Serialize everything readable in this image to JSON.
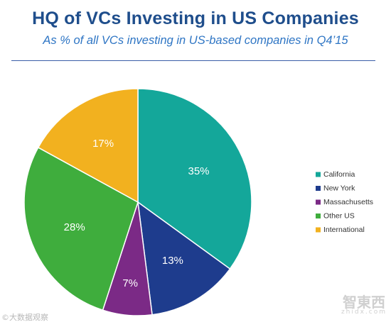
{
  "chart_data": {
    "type": "pie",
    "title": "HQ of VCs Investing in US Companies",
    "subtitle": "As % of all VCs investing in US-based companies in Q4’15",
    "slices": [
      {
        "label": "California",
        "value": 35,
        "display": "35%",
        "color": "#14a79a"
      },
      {
        "label": "New York",
        "value": 13,
        "display": "13%",
        "color": "#1e3c8d"
      },
      {
        "label": "Massachusetts",
        "value": 7,
        "display": "7%",
        "color": "#7b2a86"
      },
      {
        "label": "Other US",
        "value": 28,
        "display": "28%",
        "color": "#3fad3d"
      },
      {
        "label": "International",
        "value": 17,
        "display": "17%",
        "color": "#f2b11f"
      }
    ],
    "legend_position": "right"
  },
  "watermarks": {
    "left": "©大数据观察",
    "right_main": "智東西",
    "right_sub": "zhidx.com"
  }
}
